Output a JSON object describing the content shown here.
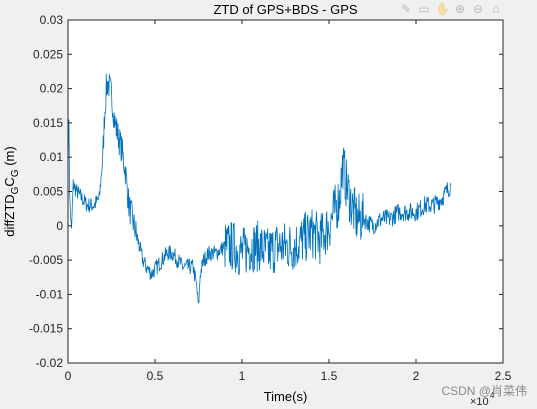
{
  "chart_data": {
    "type": "line",
    "title": "ZTD of GPS+BDS - GPS",
    "xlabel": "Time(s)",
    "ylabel_main": "diffZTD",
    "ylabel_sub1": "G",
    "ylabel_mid": "C",
    "ylabel_sub2": "G",
    "ylabel_unit": " (m)",
    "x_exponent_base": "×10",
    "x_exponent": "4",
    "xlim": [
      0,
      25000
    ],
    "ylim": [
      -0.02,
      0.03
    ],
    "xticks": [
      0,
      5000,
      10000,
      15000,
      20000,
      25000
    ],
    "xtick_labels": [
      "0",
      "0.5",
      "1",
      "1.5",
      "2",
      "2.5"
    ],
    "yticks": [
      -0.02,
      -0.015,
      -0.01,
      -0.005,
      0,
      0.005,
      0.01,
      0.015,
      0.02,
      0.025,
      0.03
    ],
    "ytick_labels": [
      "-0.02",
      "-0.015",
      "-0.01",
      "-0.005",
      "0",
      "0.005",
      "0.01",
      "0.015",
      "0.02",
      "0.025",
      "0.03"
    ],
    "grid": false,
    "line_color": "#0072bd",
    "series": [
      {
        "x": [
          0,
          50,
          100,
          200,
          300,
          500,
          800,
          1100,
          1500,
          1800,
          2000,
          2100,
          2200,
          2300,
          2500,
          2700,
          2900,
          3100,
          3300,
          3500,
          3700,
          3900,
          4100,
          4300,
          4500,
          4800,
          5100,
          5400,
          5700,
          6000,
          6300,
          6600,
          6900,
          7200,
          7400,
          7500,
          7600,
          7800,
          8100,
          8500,
          9000,
          9500,
          10000,
          10500,
          11000,
          11500,
          12000,
          12500,
          13000,
          13500,
          14000,
          14500,
          15000,
          15300,
          15600,
          15800,
          16000,
          16300,
          16600,
          17000,
          17500,
          18000,
          18500,
          19000,
          19500,
          20000,
          20500,
          21000,
          21500,
          22000
        ],
        "y": [
          0.01,
          0.016,
          0.004,
          -0.001,
          0.006,
          0.005,
          0.004,
          0.003,
          0.003,
          0.004,
          0.01,
          0.016,
          0.02,
          0.021,
          0.019,
          0.015,
          0.013,
          0.011,
          0.008,
          0.003,
          0.001,
          -0.001,
          -0.003,
          -0.005,
          -0.006,
          -0.007,
          -0.006,
          -0.005,
          -0.004,
          -0.004,
          -0.005,
          -0.006,
          -0.006,
          -0.006,
          -0.009,
          -0.012,
          -0.007,
          -0.005,
          -0.004,
          -0.004,
          -0.003,
          -0.003,
          -0.004,
          -0.003,
          -0.003,
          -0.004,
          -0.003,
          -0.003,
          -0.003,
          -0.002,
          -0.001,
          -0.002,
          0.0,
          0.002,
          0.004,
          0.009,
          0.006,
          0.003,
          0.001,
          0.001,
          0.0,
          0.001,
          0.001,
          0.002,
          0.002,
          0.002,
          0.003,
          0.003,
          0.004,
          0.006
        ]
      }
    ]
  },
  "watermark": "CSDN @肖菜伟"
}
